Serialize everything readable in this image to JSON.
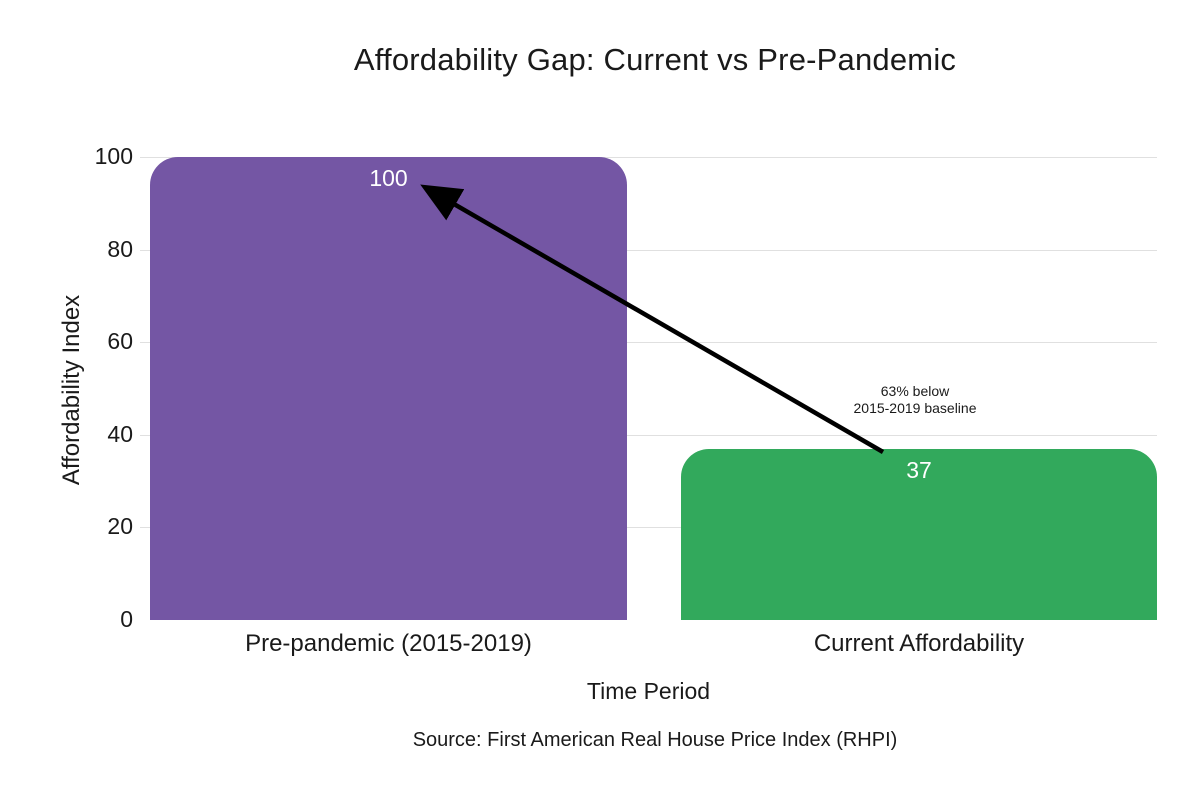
{
  "chart_data": {
    "type": "bar",
    "title": "Affordability Gap: Current vs Pre-Pandemic",
    "xlabel": "Time Period",
    "ylabel": "Affordability Index",
    "categories": [
      "Pre-pandemic (2015-2019)",
      "Current Affordability"
    ],
    "values": [
      100,
      37
    ],
    "value_labels": [
      "100",
      "37"
    ],
    "series_colors": [
      "#7456a4",
      "#32a95c"
    ],
    "value_label_color": "#ffffff",
    "ylim": [
      0,
      100
    ],
    "yticks": [
      0,
      20,
      40,
      60,
      80,
      100
    ],
    "grid": "horizontal",
    "gridline_color": "#e0e0e0",
    "legend": "none",
    "annotation": {
      "lines": [
        "63% below",
        "2015-2019 baseline"
      ],
      "arrow_color": "#000000",
      "arrow_points_from": "Current Affordability bar top",
      "arrow_points_to": "Pre-pandemic 100 label"
    },
    "source": "Source: First American Real House Price Index (RHPI)"
  }
}
